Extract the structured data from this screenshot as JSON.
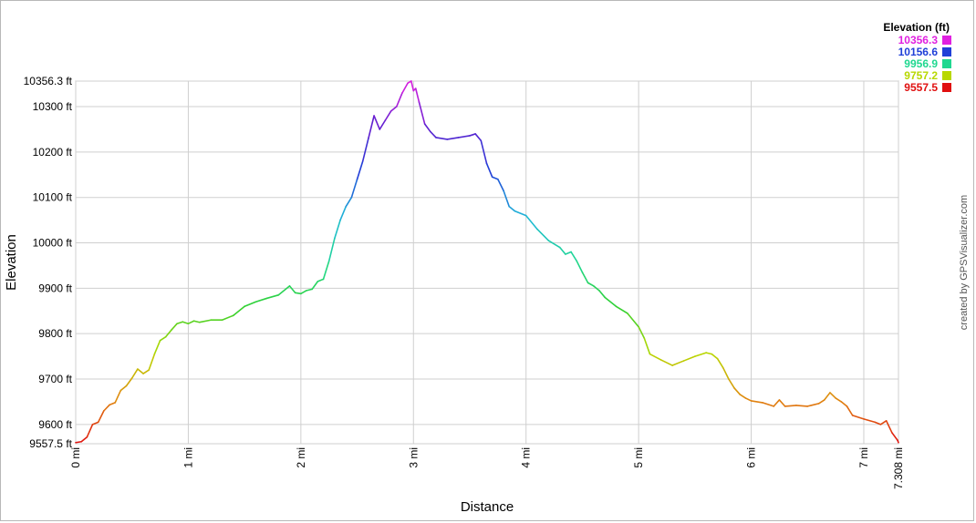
{
  "chart_data": {
    "type": "line",
    "xlabel": "Distance",
    "ylabel": "Elevation",
    "xlim": [
      0,
      7.308
    ],
    "ylim": [
      9557.5,
      10356.3
    ],
    "grid": true,
    "legend_position": "top-right",
    "x_ticks": [
      {
        "value": 0,
        "label": "0 mi"
      },
      {
        "value": 1,
        "label": "1 mi"
      },
      {
        "value": 2,
        "label": "2 mi"
      },
      {
        "value": 3,
        "label": "3 mi"
      },
      {
        "value": 4,
        "label": "4 mi"
      },
      {
        "value": 5,
        "label": "5 mi"
      },
      {
        "value": 6,
        "label": "6 mi"
      },
      {
        "value": 7,
        "label": "7 mi"
      },
      {
        "value": 7.308,
        "label": "7.308 mi"
      }
    ],
    "y_ticks": [
      {
        "value": 9557.5,
        "label": "9557.5 ft"
      },
      {
        "value": 9600,
        "label": "9600 ft"
      },
      {
        "value": 9700,
        "label": "9700 ft"
      },
      {
        "value": 9800,
        "label": "9800 ft"
      },
      {
        "value": 9900,
        "label": "9900 ft"
      },
      {
        "value": 10000,
        "label": "10000 ft"
      },
      {
        "value": 10100,
        "label": "10100 ft"
      },
      {
        "value": 10200,
        "label": "10200 ft"
      },
      {
        "value": 10300,
        "label": "10300 ft"
      },
      {
        "value": 10356.3,
        "label": "10356.3 ft"
      }
    ],
    "legend": {
      "title": "Elevation (ft)",
      "entries": [
        {
          "label": "10356.3",
          "color": "#e020e0"
        },
        {
          "label": "10156.6",
          "color": "#2040d8"
        },
        {
          "label": "9956.9",
          "color": "#20d890"
        },
        {
          "label": "9757.2",
          "color": "#b8d800"
        },
        {
          "label": "9557.5",
          "color": "#e01010"
        }
      ]
    },
    "colorscale": [
      {
        "value": 9557.5,
        "color": "#e01010"
      },
      {
        "value": 9657.35,
        "color": "#e08a10"
      },
      {
        "value": 9757.2,
        "color": "#b8d800"
      },
      {
        "value": 9857.05,
        "color": "#30d030"
      },
      {
        "value": 9956.9,
        "color": "#20d890"
      },
      {
        "value": 10056.75,
        "color": "#20b8d8"
      },
      {
        "value": 10156.6,
        "color": "#2040d8"
      },
      {
        "value": 10256.45,
        "color": "#6020d0"
      },
      {
        "value": 10356.3,
        "color": "#e020e0"
      }
    ],
    "series": [
      {
        "x": [
          0,
          0.05,
          0.1,
          0.15,
          0.2,
          0.25,
          0.3,
          0.35,
          0.4,
          0.45,
          0.5,
          0.55,
          0.6,
          0.65,
          0.7,
          0.75,
          0.8,
          0.85,
          0.9,
          0.95,
          1.0,
          1.05,
          1.1,
          1.2,
          1.3,
          1.4,
          1.5,
          1.6,
          1.7,
          1.8,
          1.9,
          1.95,
          2.0,
          2.05,
          2.1,
          2.15,
          2.2,
          2.25,
          2.3,
          2.35,
          2.4,
          2.45,
          2.5,
          2.55,
          2.6,
          2.65,
          2.7,
          2.75,
          2.8,
          2.85,
          2.9,
          2.95,
          2.98,
          3.0,
          3.02,
          3.05,
          3.1,
          3.15,
          3.2,
          3.3,
          3.4,
          3.5,
          3.55,
          3.6,
          3.65,
          3.7,
          3.75,
          3.8,
          3.85,
          3.9,
          4.0,
          4.1,
          4.2,
          4.3,
          4.35,
          4.4,
          4.45,
          4.5,
          4.55,
          4.6,
          4.65,
          4.7,
          4.8,
          4.9,
          5.0,
          5.05,
          5.1,
          5.2,
          5.3,
          5.4,
          5.5,
          5.6,
          5.65,
          5.7,
          5.75,
          5.8,
          5.85,
          5.9,
          5.95,
          6.0,
          6.1,
          6.2,
          6.25,
          6.3,
          6.4,
          6.5,
          6.6,
          6.65,
          6.7,
          6.75,
          6.8,
          6.85,
          6.9,
          7.0,
          7.1,
          7.15,
          7.2,
          7.25,
          7.3,
          7.308
        ],
        "y": [
          9560,
          9562,
          9572,
          9600,
          9605,
          9630,
          9643,
          9648,
          9675,
          9685,
          9702,
          9722,
          9712,
          9720,
          9755,
          9785,
          9793,
          9808,
          9822,
          9826,
          9822,
          9828,
          9825,
          9830,
          9830,
          9840,
          9860,
          9870,
          9878,
          9885,
          9905,
          9890,
          9888,
          9895,
          9898,
          9915,
          9920,
          9960,
          10010,
          10050,
          10080,
          10100,
          10140,
          10180,
          10230,
          10280,
          10250,
          10270,
          10290,
          10300,
          10330,
          10352,
          10356.3,
          10335,
          10340,
          10310,
          10262,
          10245,
          10232,
          10228,
          10232,
          10236,
          10240,
          10225,
          10175,
          10145,
          10140,
          10115,
          10080,
          10070,
          10060,
          10030,
          10005,
          9990,
          9975,
          9980,
          9960,
          9935,
          9912,
          9905,
          9895,
          9880,
          9860,
          9845,
          9815,
          9790,
          9755,
          9742,
          9730,
          9740,
          9750,
          9758,
          9755,
          9745,
          9725,
          9700,
          9680,
          9666,
          9658,
          9652,
          9648,
          9640,
          9654,
          9640,
          9642,
          9640,
          9646,
          9654,
          9670,
          9658,
          9650,
          9640,
          9620,
          9612,
          9605,
          9600,
          9608,
          9582,
          9565,
          9560
        ]
      }
    ],
    "credit": "created by GPSVisualizer.com"
  }
}
